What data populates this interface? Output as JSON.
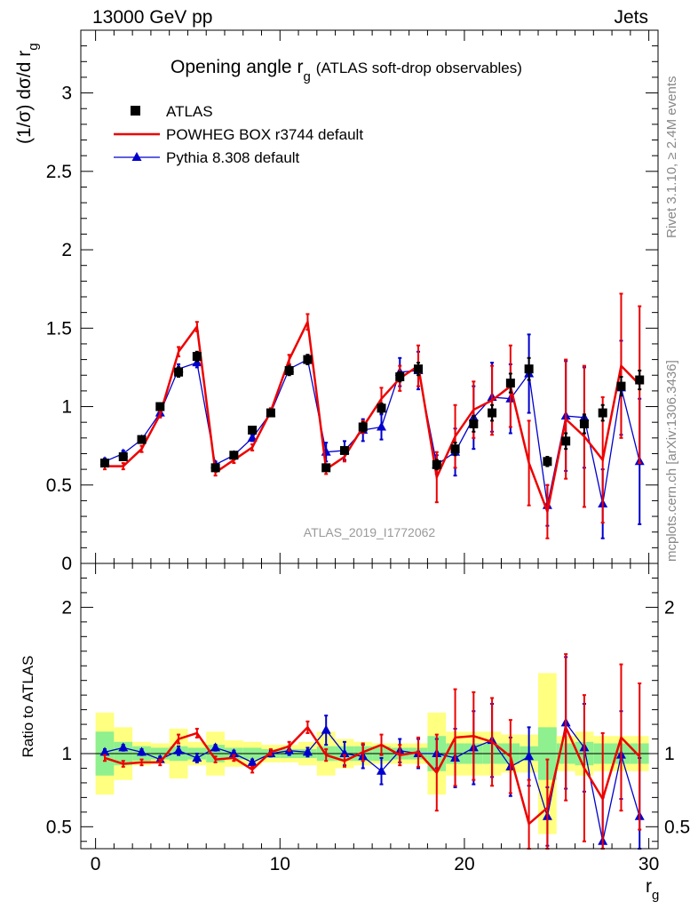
{
  "header": {
    "left": "13000 GeV pp",
    "right": "Jets"
  },
  "side_text": {
    "rivet": "Rivet 3.1.10, ≥ 2.4M events",
    "mcplots": "mcplots.cern.ch [arXiv:1306.3436]"
  },
  "chart_data": {
    "type": "line",
    "title": "Opening angle r",
    "title_sub": "g",
    "title_suffix": "(ATLAS soft-drop observables)",
    "watermark": "ATLAS_2019_I1772062",
    "ylabel_top": "(1/σ) dσ/d r",
    "ylabel_top_sub": "g",
    "ylabel_bottom": "Ratio to ATLAS",
    "xlabel": "r",
    "xlabel_sub": "g",
    "xlim": [
      -0.8,
      30.5
    ],
    "ylim_top": [
      0,
      3.4
    ],
    "ylim_bottom": [
      0.35,
      2.3
    ],
    "x_ticks": [
      "0",
      "10",
      "20",
      "30"
    ],
    "y_ticks_top": [
      "0",
      "0.5",
      "1",
      "1.5",
      "2",
      "2.5",
      "3"
    ],
    "y_ticks_bottom": [
      "0.5",
      "1",
      "2"
    ],
    "x": [
      0.5,
      1.5,
      2.5,
      3.5,
      4.5,
      5.5,
      6.5,
      7.5,
      8.5,
      9.5,
      10.5,
      11.5,
      12.5,
      13.5,
      14.5,
      15.5,
      16.5,
      17.5,
      18.5,
      19.5,
      20.5,
      21.5,
      22.5,
      23.5,
      24.5,
      25.5,
      26.5,
      27.5,
      28.5,
      29.5
    ],
    "series": [
      {
        "name": "ATLAS",
        "color": "#000000",
        "marker": "square",
        "values": [
          0.64,
          0.68,
          0.79,
          1.0,
          1.22,
          1.32,
          0.61,
          0.69,
          0.85,
          0.96,
          1.23,
          1.3,
          0.61,
          0.72,
          0.87,
          0.99,
          1.19,
          1.24,
          0.63,
          0.73,
          0.89,
          0.96,
          1.15,
          1.24,
          0.65,
          0.78,
          0.89,
          0.96,
          1.13,
          1.17
        ],
        "errors": [
          0.02,
          0.02,
          0.02,
          0.02,
          0.03,
          0.03,
          0.02,
          0.02,
          0.02,
          0.02,
          0.03,
          0.03,
          0.02,
          0.02,
          0.03,
          0.03,
          0.03,
          0.04,
          0.03,
          0.04,
          0.05,
          0.05,
          0.06,
          0.07,
          0.03,
          0.05,
          0.06,
          0.05,
          0.06,
          0.06
        ]
      },
      {
        "name": "POWHEG BOX r3744 default",
        "color": "#ee0000",
        "marker": "none",
        "values": [
          0.62,
          0.62,
          0.73,
          0.95,
          1.35,
          1.51,
          0.58,
          0.66,
          0.74,
          0.97,
          1.3,
          1.54,
          0.6,
          0.68,
          0.87,
          1.05,
          1.18,
          1.26,
          0.55,
          0.81,
          0.98,
          1.04,
          1.13,
          0.64,
          0.33,
          0.92,
          0.81,
          0.66,
          1.26,
          1.14
        ],
        "errors": [
          0.02,
          0.02,
          0.02,
          0.02,
          0.03,
          0.03,
          0.02,
          0.02,
          0.02,
          0.02,
          0.03,
          0.05,
          0.03,
          0.03,
          0.04,
          0.07,
          0.08,
          0.13,
          0.16,
          0.2,
          0.18,
          0.22,
          0.26,
          0.27,
          0.17,
          0.38,
          0.45,
          0.4,
          0.46,
          0.5
        ]
      },
      {
        "name": "Pythia 8.308 default",
        "color": "#0000cc",
        "marker": "triangle",
        "values": [
          0.65,
          0.7,
          0.79,
          0.96,
          1.24,
          1.28,
          0.63,
          0.69,
          0.8,
          0.96,
          1.24,
          1.3,
          0.71,
          0.72,
          0.85,
          0.87,
          1.22,
          1.23,
          0.63,
          0.71,
          0.93,
          1.06,
          1.05,
          1.21,
          0.37,
          0.94,
          0.93,
          0.38,
          1.12,
          0.65
        ],
        "errors": [
          0.02,
          0.02,
          0.02,
          0.02,
          0.03,
          0.03,
          0.02,
          0.02,
          0.02,
          0.02,
          0.03,
          0.03,
          0.06,
          0.06,
          0.07,
          0.08,
          0.09,
          0.12,
          0.06,
          0.15,
          0.2,
          0.22,
          0.22,
          0.25,
          0.13,
          0.35,
          0.32,
          0.22,
          0.3,
          0.4
        ]
      }
    ],
    "ratio": {
      "POWHEG BOX r3744 default": {
        "values": [
          0.97,
          0.93,
          0.94,
          0.94,
          1.1,
          1.14,
          0.96,
          0.97,
          0.89,
          1.01,
          1.05,
          1.18,
          0.99,
          0.95,
          1.01,
          1.06,
          0.99,
          1.01,
          0.87,
          1.11,
          1.12,
          1.08,
          0.98,
          0.52,
          0.63,
          1.18,
          0.9,
          0.69,
          1.11,
          0.98
        ],
        "errors": [
          0.02,
          0.02,
          0.02,
          0.02,
          0.03,
          0.03,
          0.02,
          0.02,
          0.02,
          0.02,
          0.03,
          0.04,
          0.04,
          0.04,
          0.06,
          0.07,
          0.07,
          0.1,
          0.26,
          0.33,
          0.3,
          0.3,
          0.25,
          0.3,
          0.33,
          0.5,
          0.5,
          0.45,
          0.5,
          0.5
        ]
      },
      "Pythia 8.308 default": {
        "values": [
          1.01,
          1.04,
          1.01,
          0.96,
          1.02,
          0.97,
          1.04,
          1.0,
          0.94,
          1.0,
          1.02,
          1.01,
          1.16,
          1.0,
          0.98,
          0.88,
          1.02,
          1.0,
          1.0,
          0.97,
          1.04,
          1.09,
          0.91,
          0.98,
          0.57,
          1.21,
          1.04,
          0.4,
          0.99,
          0.57
        ],
        "errors": [
          0.02,
          0.02,
          0.02,
          0.02,
          0.03,
          0.03,
          0.02,
          0.02,
          0.02,
          0.02,
          0.03,
          0.03,
          0.1,
          0.08,
          0.08,
          0.09,
          0.08,
          0.1,
          0.1,
          0.2,
          0.25,
          0.25,
          0.2,
          0.2,
          0.2,
          0.45,
          0.3,
          0.3,
          0.3,
          0.4
        ]
      }
    },
    "band_inner": [
      0.15,
      0.08,
      0.05,
      0.04,
      0.05,
      0.04,
      0.06,
      0.04,
      0.04,
      0.03,
      0.03,
      0.03,
      0.05,
      0.05,
      0.05,
      0.05,
      0.04,
      0.04,
      0.12,
      0.07,
      0.07,
      0.07,
      0.07,
      0.05,
      0.18,
      0.07,
      0.08,
      0.07,
      0.07,
      0.07
    ],
    "band_outer": [
      0.28,
      0.18,
      0.08,
      0.07,
      0.17,
      0.08,
      0.15,
      0.09,
      0.08,
      0.06,
      0.06,
      0.08,
      0.15,
      0.1,
      0.08,
      0.07,
      0.07,
      0.07,
      0.28,
      0.15,
      0.15,
      0.15,
      0.13,
      0.13,
      0.55,
      0.12,
      0.15,
      0.12,
      0.12,
      0.12
    ]
  }
}
